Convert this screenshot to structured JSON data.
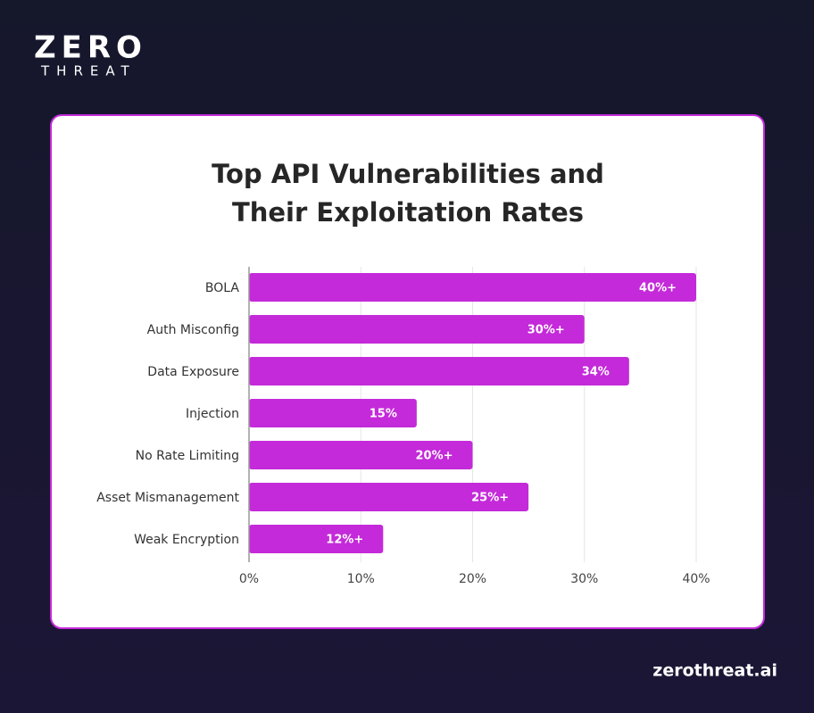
{
  "brand": {
    "logo_top": "ZERO",
    "logo_bottom": "THREAT",
    "website": "zerothreat.ai"
  },
  "chart_data": {
    "type": "bar",
    "orientation": "horizontal",
    "title": "Top API Vulnerabilities and Their Exploitation Rates",
    "categories": [
      "BOLA",
      "Auth Misconfig",
      "Data Exposure",
      "Injection",
      "No Rate Limiting",
      "Asset Mismanagement",
      "Weak Encryption"
    ],
    "values": [
      40,
      30,
      34,
      15,
      20,
      25,
      12
    ],
    "value_labels": [
      "40%+",
      "30%+",
      "34%",
      "15%",
      "20%+",
      "25%+",
      "12%+"
    ],
    "color": "#c42ad9",
    "xlim": [
      0,
      40
    ],
    "xticks": [
      {
        "value": 0,
        "label": "0%"
      },
      {
        "value": 10,
        "label": "10%"
      },
      {
        "value": 20,
        "label": "20%"
      },
      {
        "value": 30,
        "label": "30%"
      },
      {
        "value": 40,
        "label": "40%"
      }
    ],
    "grid": true
  }
}
